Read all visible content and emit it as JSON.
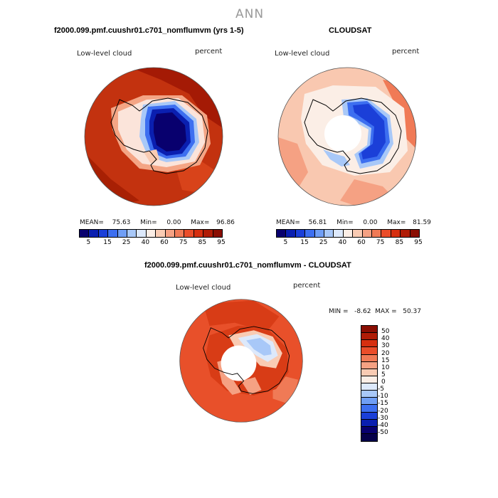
{
  "figure": {
    "title": "ANN",
    "panel1_title": "f2000.099.pmf.cuushr01.c701_nomflumvm (yrs 1-5)",
    "panel2_title": "CLOUDSAT",
    "panel3_title": "f2000.099.pmf.cuushr01.c701_nomflumvm - CLOUDSAT"
  },
  "panels": [
    {
      "left_label": "Low-level cloud",
      "right_label": "percent",
      "stats": {
        "mean_label": "MEAN=",
        "mean": "75.63",
        "min_label": "Min=",
        "min": "0.00",
        "max_label": "Max=",
        "max": "96.86"
      }
    },
    {
      "left_label": "Low-level cloud",
      "right_label": "percent",
      "stats": {
        "mean_label": "MEAN=",
        "mean": "56.81",
        "min_label": "Min=",
        "min": "0.00",
        "max_label": "Max=",
        "max": "81.59"
      }
    },
    {
      "left_label": "Low-level cloud",
      "right_label": "percent",
      "minmax": "MIN =   -8.62  MAX =   50.37"
    }
  ],
  "colorbar_abs": {
    "ticks": [
      "5",
      "15",
      "25",
      "40",
      "60",
      "75",
      "85",
      "95"
    ],
    "colors": [
      "#08006e",
      "#0a1fb0",
      "#1b3fd8",
      "#3d6ff0",
      "#6f9ef5",
      "#a8c8f8",
      "#dde9fb",
      "#fbeee6",
      "#f9cbb3",
      "#f5a183",
      "#f07a56",
      "#ea4d2a",
      "#d62f10",
      "#b01c06",
      "#8a0e02"
    ]
  },
  "colorbar_diff": {
    "ticks": [
      "50",
      "40",
      "30",
      "20",
      "15",
      "10",
      "5",
      "0",
      "-5",
      "-10",
      "-15",
      "-20",
      "-30",
      "-40",
      "-50"
    ],
    "colors": [
      "#8a0e02",
      "#b01c06",
      "#d62f10",
      "#ea4d2a",
      "#f07a56",
      "#f5a183",
      "#f9cbb3",
      "#fbeee6",
      "#dde9fb",
      "#a8c8f8",
      "#6f9ef5",
      "#3d6ff0",
      "#1b3fd8",
      "#0a1fb0",
      "#08006e",
      "#05004a"
    ]
  }
}
